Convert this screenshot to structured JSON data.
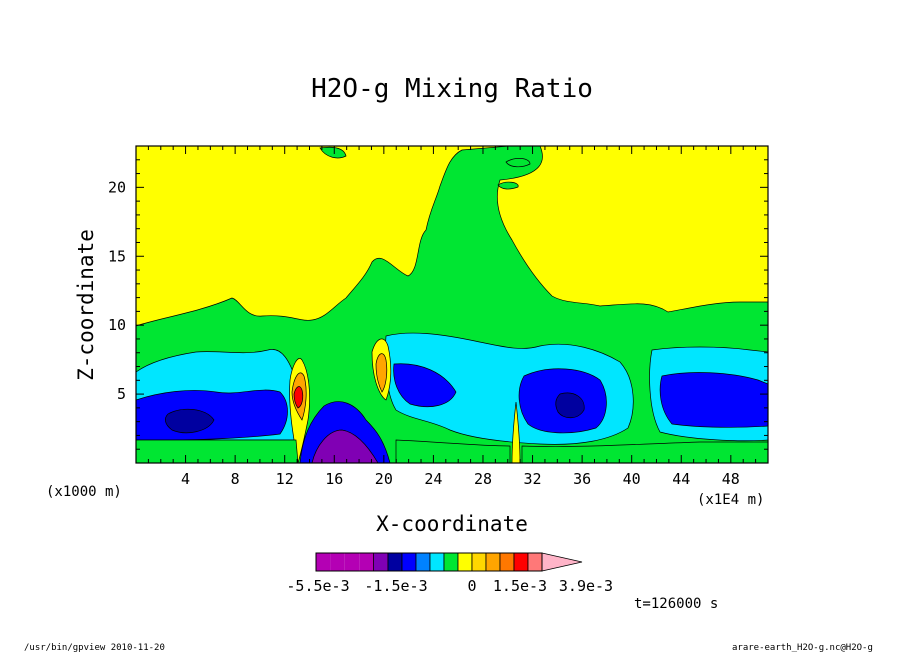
{
  "chart_data": {
    "type": "heatmap",
    "title": "H2O-g Mixing Ratio",
    "xlabel": "X-coordinate",
    "ylabel": "Z-coordinate",
    "x_unit_left": "(x1000 m)",
    "x_unit_right": "(x1E4 m)",
    "xlim": [
      0,
      51
    ],
    "ylim": [
      0,
      23
    ],
    "x_ticks": [
      "4",
      "8",
      "12",
      "16",
      "20",
      "24",
      "28",
      "32",
      "36",
      "40",
      "44",
      "48"
    ],
    "y_ticks": [
      "5",
      "10",
      "15",
      "20"
    ],
    "colorbar": {
      "labels": [
        "-5.5e-3",
        "-1.5e-3",
        "0",
        "1.5e-3",
        "3.9e-3"
      ],
      "colors": [
        "#b400b4",
        "#b400b4",
        "#b400b4",
        "#b400b4",
        "#8000b4",
        "#0000a0",
        "#0000ff",
        "#0082ff",
        "#00e6ff",
        "#00e632",
        "#ffff00",
        "#ffd700",
        "#ffa500",
        "#ff7800",
        "#ff0000",
        "#ff7878",
        "#ffb4c8"
      ]
    },
    "time_label": "t=126000 s",
    "grid": false
  },
  "footer": {
    "left": "/usr/bin/gpview  2010-11-20",
    "right": "arare-earth_H2O-g.nc@H2O-g"
  },
  "colors": {
    "yellow": "#ffff00",
    "green": "#00e632",
    "cyan": "#00e6ff",
    "blue": "#0000ff",
    "darkblue": "#0000a0",
    "purple": "#8000b4",
    "orange": "#ffa500",
    "red": "#ff0000"
  }
}
